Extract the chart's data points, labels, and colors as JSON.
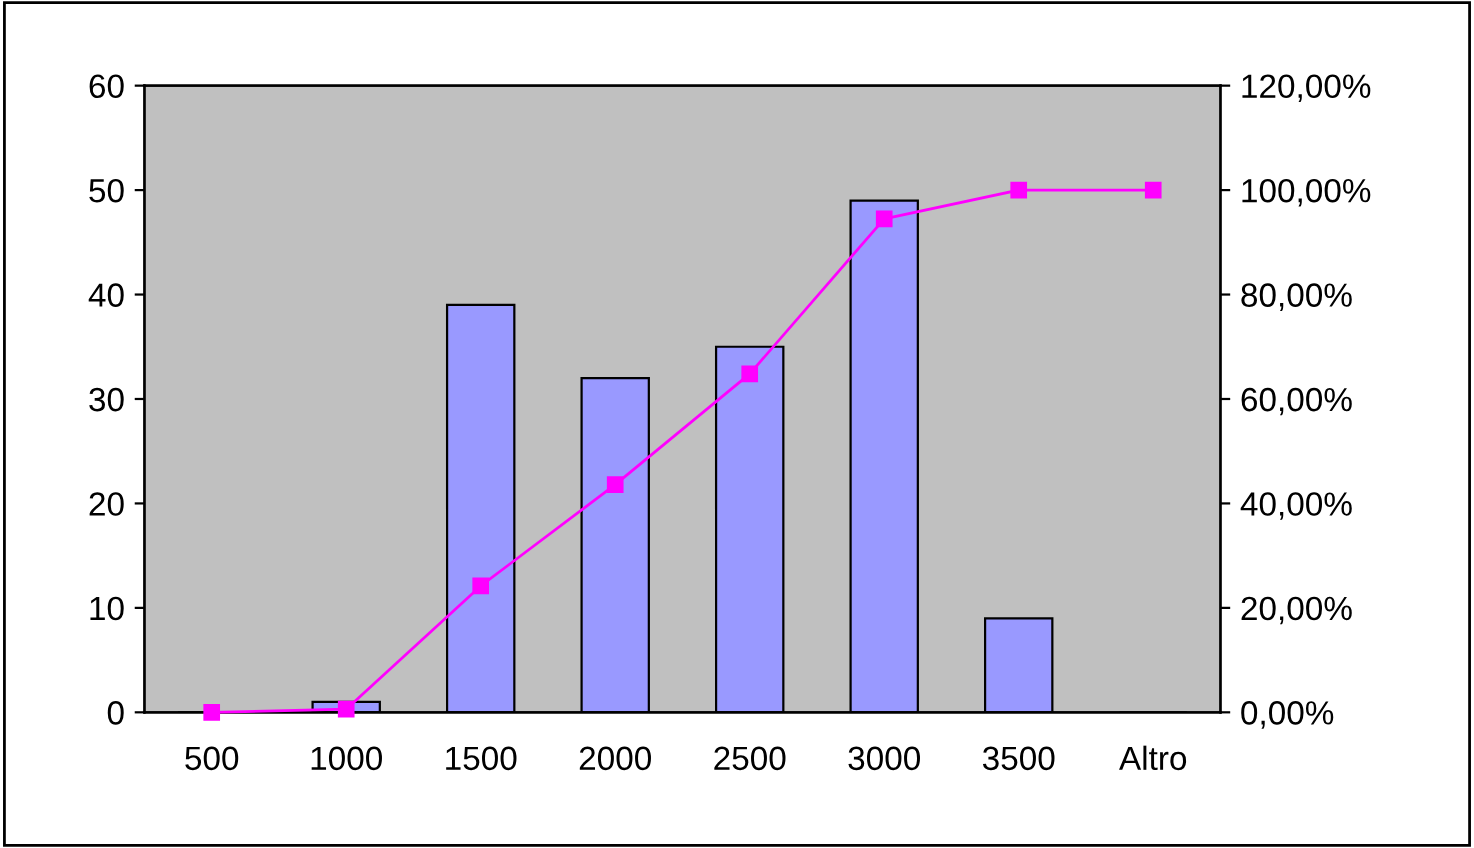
{
  "chart_data": {
    "type": "bar",
    "categories": [
      "500",
      "1000",
      "1500",
      "2000",
      "2500",
      "3000",
      "3500",
      "Altro"
    ],
    "series": [
      {
        "color": "#9999ff",
        "values": [
          0,
          1,
          39,
          32,
          35,
          49,
          9,
          0
        ]
      },
      {
        "type": "line",
        "axis": "y2",
        "color": "#ff00ff",
        "marker": "square",
        "values": [
          0,
          0.6,
          24.2,
          43.6,
          64.8,
          94.5,
          100,
          100
        ]
      }
    ],
    "ylim": [
      0,
      60
    ],
    "yticks": [
      0,
      10,
      20,
      30,
      40,
      50,
      60
    ],
    "y2lim": [
      0,
      120
    ],
    "y2ticks": [
      {
        "value": 0,
        "label": "0,00%"
      },
      {
        "value": 20,
        "label": "20,00%"
      },
      {
        "value": 40,
        "label": "40,00%"
      },
      {
        "value": 60,
        "label": "60,00%"
      },
      {
        "value": 80,
        "label": "80,00%"
      },
      {
        "value": 100,
        "label": "100,00%"
      },
      {
        "value": 120,
        "label": "120,00%"
      }
    ],
    "grid": false,
    "legend": false
  }
}
